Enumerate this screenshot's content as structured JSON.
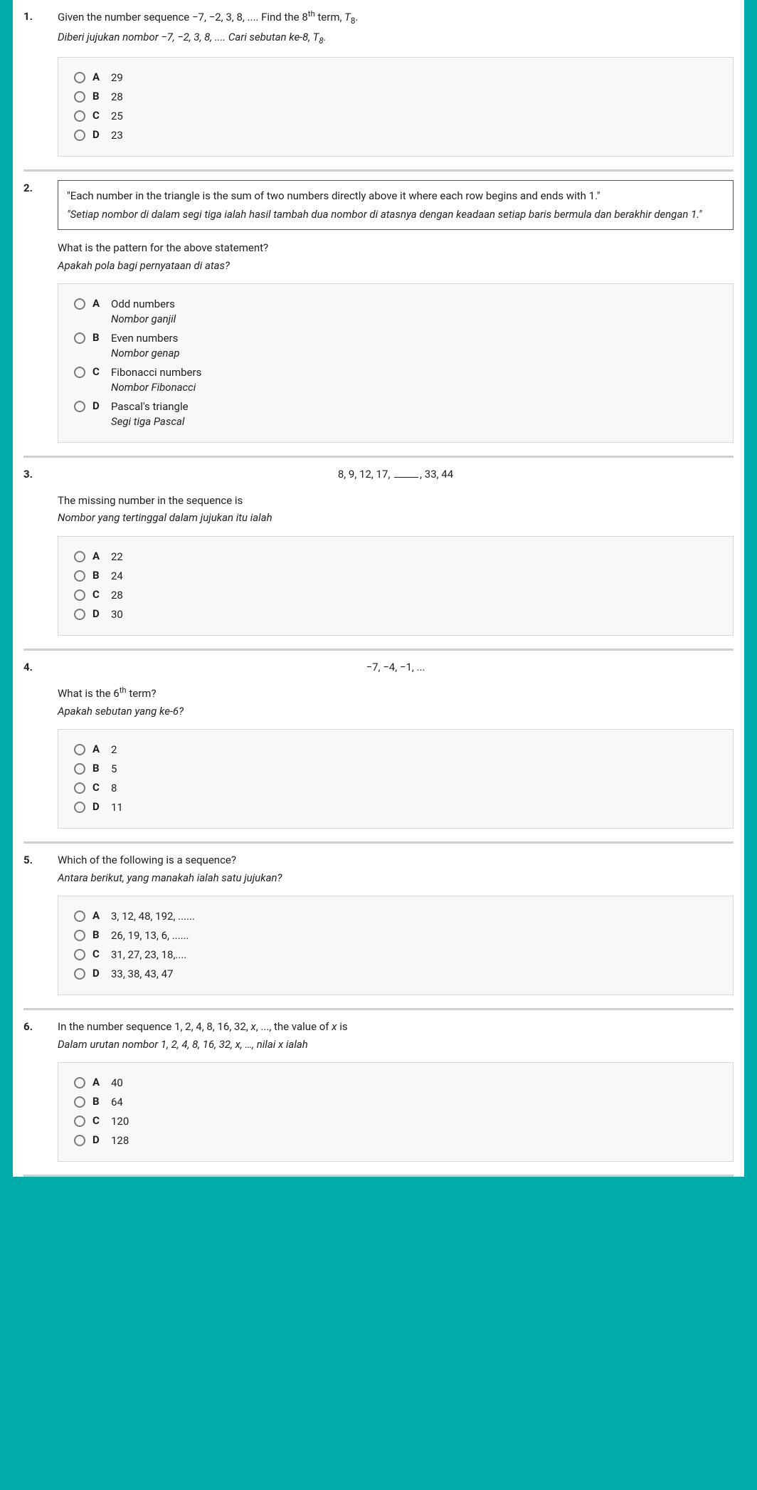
{
  "questions": [
    {
      "num": "1.",
      "text_en_html": "Given the number sequence −7, −2, 3, 8, .... Find the 8<sup>th</sup> term, <span class='ital'>T</span><sub>8</sub>.",
      "text_ms_html": "Diberi jujukan nombor −7, −2, 3, 8, .... Cari sebutan ke-8, T<sub>8</sub>.",
      "options": [
        {
          "letter": "A",
          "en": "29"
        },
        {
          "letter": "B",
          "en": "28"
        },
        {
          "letter": "C",
          "en": "25"
        },
        {
          "letter": "D",
          "en": "23"
        }
      ]
    },
    {
      "num": "2.",
      "quote_en": "\"Each number in the triangle is the sum of two numbers directly above it where each row begins and ends with 1.\"",
      "quote_ms": "\"Setiap nombor di dalam segi tiga ialah hasil tambah dua nombor di atasnya dengan keadaan setiap baris bermula dan berakhir dengan 1.\"",
      "text_en_html": "What is the pattern for the above statement?",
      "text_ms_html": "Apakah pola bagi pernyataan di atas?",
      "options": [
        {
          "letter": "A",
          "en": "Odd numbers",
          "ms": "Nombor ganjil"
        },
        {
          "letter": "B",
          "en": "Even numbers",
          "ms": "Nombor genap"
        },
        {
          "letter": "C",
          "en": "Fibonacci numbers",
          "ms": "Nombor Fibonacci"
        },
        {
          "letter": "D",
          "en": "Pascal's triangle",
          "ms": "Segi tiga Pascal"
        }
      ]
    },
    {
      "num": "3.",
      "seq_before": "8, 9, 12, 17, ",
      "seq_after": ", 33, 44",
      "text_en_html": "The missing number in the sequence is",
      "text_ms_html": "Nombor yang tertinggal dalam jujukan itu ialah",
      "options": [
        {
          "letter": "A",
          "en": "22"
        },
        {
          "letter": "B",
          "en": "24"
        },
        {
          "letter": "C",
          "en": "28"
        },
        {
          "letter": "D",
          "en": "30"
        }
      ]
    },
    {
      "num": "4.",
      "seq_center": "−7, −4, −1, ...",
      "text_en_html": "What is the 6<sup>th</sup> term?",
      "text_ms_html": "Apakah sebutan yang ke-6?",
      "options": [
        {
          "letter": "A",
          "en": "2"
        },
        {
          "letter": "B",
          "en": "5"
        },
        {
          "letter": "C",
          "en": "8"
        },
        {
          "letter": "D",
          "en": "11"
        }
      ]
    },
    {
      "num": "5.",
      "text_en_html": "Which of the following is a sequence?",
      "text_ms_html": "Antara berikut, yang manakah ialah satu jujukan?",
      "options": [
        {
          "letter": "A",
          "en": "3, 12, 48, 192, ......"
        },
        {
          "letter": "B",
          "en": "26, 19, 13, 6, ......"
        },
        {
          "letter": "C",
          "en": "31, 27, 23, 18,...."
        },
        {
          "letter": "D",
          "en": "33, 38, 43, 47"
        }
      ]
    },
    {
      "num": "6.",
      "text_en_html": "In the number sequence 1, 2, 4, 8, 16, 32, <span class='ital'>x</span>, ..., the value of <span class='ital'>x</span> is",
      "text_ms_html": "Dalam urutan nombor 1, 2, 4, 8, 16, 32, x, …, nilai x ialah",
      "options": [
        {
          "letter": "A",
          "en": "40"
        },
        {
          "letter": "B",
          "en": "64"
        },
        {
          "letter": "C",
          "en": "120"
        },
        {
          "letter": "D",
          "en": "128"
        }
      ]
    }
  ]
}
